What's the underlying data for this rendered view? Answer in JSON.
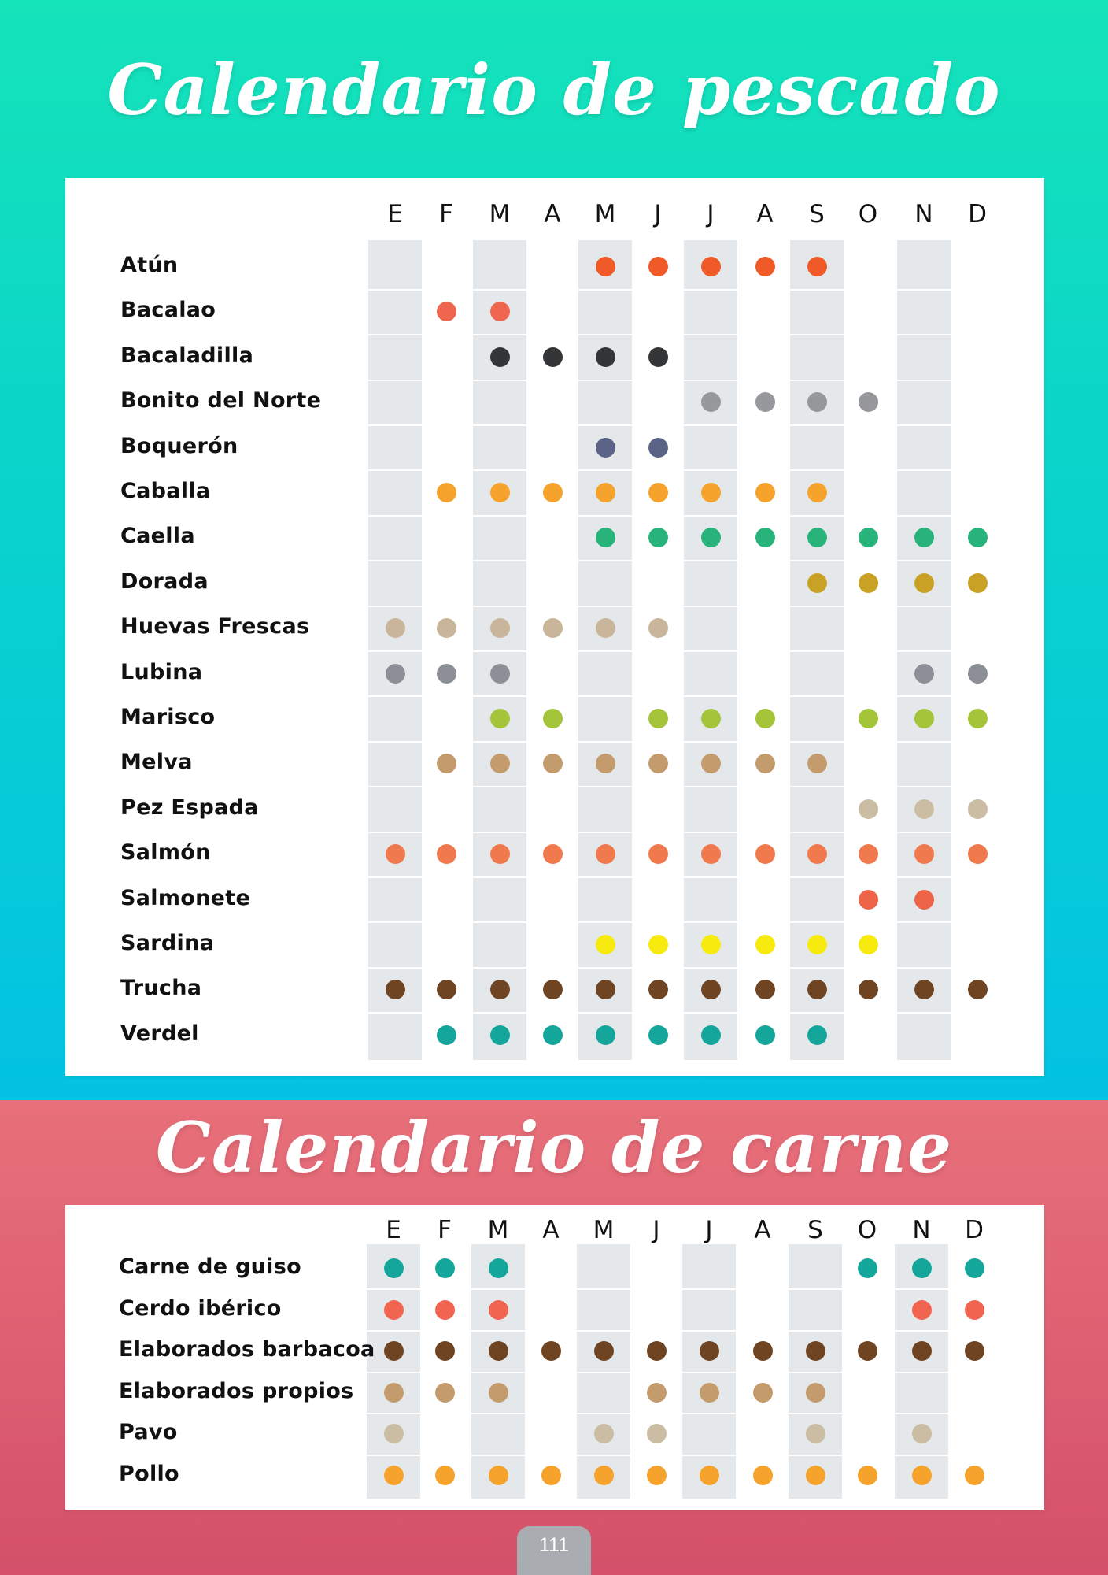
{
  "colors": {
    "fish_bg_top": "#15e3b9",
    "fish_bg_bottom": "#03c2e3",
    "meat_bg_top": "#e8707a",
    "meat_bg_bottom": "#d4506a",
    "column_band": "#e5e8ea"
  },
  "page_number": "111",
  "chart_data": [
    {
      "type": "table",
      "title": "Calendario de pescado",
      "categories": [
        "E",
        "F",
        "M",
        "A",
        "M",
        "J",
        "J",
        "A",
        "S",
        "O",
        "N",
        "D"
      ],
      "series": [
        {
          "name": "Atún",
          "color": "#f05a28",
          "values": [
            0,
            0,
            0,
            0,
            1,
            1,
            1,
            1,
            1,
            0,
            0,
            0
          ]
        },
        {
          "name": "Bacalao",
          "color": "#ef6650",
          "values": [
            0,
            1,
            1,
            0,
            0,
            0,
            0,
            0,
            0,
            0,
            0,
            0
          ]
        },
        {
          "name": "Bacaladilla",
          "color": "#333537",
          "values": [
            0,
            0,
            1,
            1,
            1,
            1,
            0,
            0,
            0,
            0,
            0,
            0
          ]
        },
        {
          "name": "Bonito del Norte",
          "color": "#96989b",
          "values": [
            0,
            0,
            0,
            0,
            0,
            0,
            1,
            1,
            1,
            1,
            0,
            0
          ]
        },
        {
          "name": "Boquerón",
          "color": "#5a6386",
          "values": [
            0,
            0,
            0,
            0,
            1,
            1,
            0,
            0,
            0,
            0,
            0,
            0
          ]
        },
        {
          "name": "Caballa",
          "color": "#f5a32c",
          "values": [
            0,
            1,
            1,
            1,
            1,
            1,
            1,
            1,
            1,
            0,
            0,
            0
          ]
        },
        {
          "name": "Caella",
          "color": "#27b37a",
          "values": [
            0,
            0,
            0,
            0,
            1,
            1,
            1,
            1,
            1,
            1,
            1,
            1
          ]
        },
        {
          "name": "Dorada",
          "color": "#c9a225",
          "values": [
            0,
            0,
            0,
            0,
            0,
            0,
            0,
            0,
            1,
            1,
            1,
            1
          ]
        },
        {
          "name": "Huevas Frescas",
          "color": "#c9b69a",
          "values": [
            1,
            1,
            1,
            1,
            1,
            1,
            0,
            0,
            0,
            0,
            0,
            0
          ]
        },
        {
          "name": "Lubina",
          "color": "#8c8f95",
          "values": [
            1,
            1,
            1,
            0,
            0,
            0,
            0,
            0,
            0,
            0,
            1,
            1
          ]
        },
        {
          "name": "Marisco",
          "color": "#a4c43a",
          "values": [
            0,
            0,
            1,
            1,
            0,
            1,
            1,
            1,
            0,
            1,
            1,
            1
          ]
        },
        {
          "name": "Melva",
          "color": "#c49b6c",
          "values": [
            0,
            1,
            1,
            1,
            1,
            1,
            1,
            1,
            1,
            0,
            0,
            0
          ]
        },
        {
          "name": "Pez Espada",
          "color": "#cbbda3",
          "values": [
            0,
            0,
            0,
            0,
            0,
            0,
            0,
            0,
            0,
            1,
            1,
            1
          ]
        },
        {
          "name": "Salmón",
          "color": "#f07a4e",
          "values": [
            1,
            1,
            1,
            1,
            1,
            1,
            1,
            1,
            1,
            1,
            1,
            1
          ]
        },
        {
          "name": "Salmonete",
          "color": "#ee6448",
          "values": [
            0,
            0,
            0,
            0,
            0,
            0,
            0,
            0,
            0,
            1,
            1,
            0
          ]
        },
        {
          "name": "Sardina",
          "color": "#f6ea0e",
          "values": [
            0,
            0,
            0,
            0,
            1,
            1,
            1,
            1,
            1,
            1,
            0,
            0
          ]
        },
        {
          "name": "Trucha",
          "color": "#6e4423",
          "values": [
            1,
            1,
            1,
            1,
            1,
            1,
            1,
            1,
            1,
            1,
            1,
            1
          ]
        },
        {
          "name": "Verdel",
          "color": "#14a69a",
          "values": [
            0,
            1,
            1,
            1,
            1,
            1,
            1,
            1,
            1,
            0,
            0,
            0
          ]
        }
      ]
    },
    {
      "type": "table",
      "title": "Calendario de carne",
      "categories": [
        "E",
        "F",
        "M",
        "A",
        "M",
        "J",
        "J",
        "A",
        "S",
        "O",
        "N",
        "D"
      ],
      "series": [
        {
          "name": "Carne de guiso",
          "color": "#14a69a",
          "values": [
            1,
            1,
            1,
            0,
            0,
            0,
            0,
            0,
            0,
            1,
            1,
            1
          ]
        },
        {
          "name": "Cerdo ibérico",
          "color": "#f06450",
          "values": [
            1,
            1,
            1,
            0,
            0,
            0,
            0,
            0,
            0,
            0,
            1,
            1
          ]
        },
        {
          "name": "Elaborados barbacoa",
          "color": "#6e4423",
          "values": [
            1,
            1,
            1,
            1,
            1,
            1,
            1,
            1,
            1,
            1,
            1,
            1
          ]
        },
        {
          "name": "Elaborados propios",
          "color": "#c49b6c",
          "values": [
            1,
            1,
            1,
            0,
            0,
            1,
            1,
            1,
            1,
            0,
            0,
            0
          ]
        },
        {
          "name": "Pavo",
          "color": "#cbbda3",
          "values": [
            1,
            0,
            0,
            0,
            1,
            1,
            0,
            0,
            1,
            0,
            1,
            0
          ]
        },
        {
          "name": "Pollo",
          "color": "#f5a32c",
          "values": [
            1,
            1,
            1,
            1,
            1,
            1,
            1,
            1,
            1,
            1,
            1,
            1
          ]
        }
      ]
    }
  ]
}
